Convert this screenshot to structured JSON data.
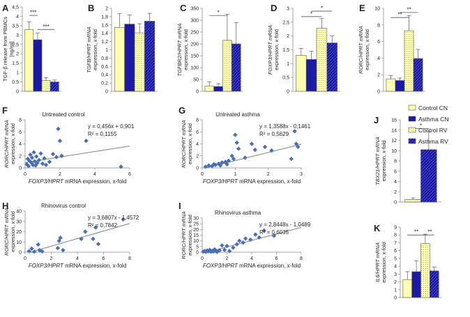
{
  "figure": {
    "colors": {
      "control_cn": "#ffffb0",
      "asthma_cn": "#1a1aa6",
      "control_rv": "#ffffb0",
      "asthma_rv": "#1a1aa6",
      "scatter_point": "#4a6fb5",
      "trend_line": "#808080",
      "axis": "#8a8a8a"
    },
    "legend": [
      {
        "label": "Control CN",
        "pattern": "solid-yellow"
      },
      {
        "label": "Asthma CN",
        "pattern": "solid-blue"
      },
      {
        "label": "Control RV",
        "pattern": "dotted-yellow"
      },
      {
        "label": "Asthma RV",
        "pattern": "hatched-blue"
      }
    ]
  },
  "chart_data": [
    {
      "panel": "A",
      "type": "bar",
      "ylabel_lines": [
        "TGF-β release from PBMCs",
        "[ng/ml]"
      ],
      "ylim": [
        0,
        4.5
      ],
      "yticks": [
        0,
        0.5,
        1,
        1.5,
        2,
        2.5,
        3,
        3.5,
        4,
        4.5
      ],
      "tick_labels": [
        "0",
        "0,5",
        "1",
        "1,5",
        "2",
        "2,5",
        "3",
        "3,5",
        "4",
        "4,5"
      ],
      "categories": [
        "Control CN",
        "Asthma CN",
        "Control RV",
        "Asthma RV"
      ],
      "values": [
        3.3,
        2.75,
        0.58,
        0.5
      ],
      "errors": [
        0.4,
        0.35,
        0.15,
        0.1
      ],
      "significance": [
        {
          "from": 0,
          "to": 1,
          "label": "***",
          "y": 4.05
        },
        {
          "from": 1,
          "to": 3,
          "label": "***",
          "y": 3.3
        }
      ]
    },
    {
      "panel": "B",
      "type": "bar",
      "ylabel_lines": [
        "TGFB/HPRT mRNA",
        "expression, x-fold"
      ],
      "ylim": [
        0,
        2
      ],
      "yticks": [
        0,
        0.2,
        0.4,
        0.6,
        0.8,
        1,
        1.2,
        1.4,
        1.6,
        1.8,
        2
      ],
      "tick_labels": [
        "0",
        "0,2",
        "0,4",
        "0,6",
        "0,8",
        "1",
        "1,2",
        "1,4",
        "1,6",
        "1,8",
        "2"
      ],
      "categories": [
        "Control CN",
        "Asthma CN",
        "Control RV",
        "Asthma RV"
      ],
      "values": [
        1.54,
        1.62,
        1.41,
        1.69
      ],
      "errors": [
        0.33,
        0.22,
        0.22,
        0.19
      ],
      "significance": []
    },
    {
      "panel": "C",
      "type": "bar",
      "ylabel_lines": [
        "TGFBR2/HPRT mRNA",
        "expression, x-fold"
      ],
      "ylim": [
        0,
        350
      ],
      "yticks": [
        0,
        50,
        100,
        150,
        200,
        250,
        300,
        350
      ],
      "tick_labels": [
        "0",
        "50",
        "100",
        "150",
        "200",
        "250",
        "300",
        "350"
      ],
      "categories": [
        "Control CN",
        "Asthma CN",
        "Control RV",
        "Asthma RV"
      ],
      "values": [
        22,
        20,
        215,
        200
      ],
      "errors": [
        18,
        12,
        110,
        90
      ],
      "significance": [
        {
          "from": 0,
          "to": 2,
          "label": "*",
          "y": 320
        }
      ]
    },
    {
      "panel": "D",
      "type": "bar",
      "ylabel_lines": [
        "FOXP3/HPRT mRNA",
        "expression, x-fold"
      ],
      "ylim": [
        0,
        3
      ],
      "yticks": [
        0,
        0.5,
        1,
        1.5,
        2,
        2.5,
        3
      ],
      "tick_labels": [
        "0",
        "0,5",
        "1",
        "1,5",
        "2",
        "2,5",
        "3"
      ],
      "categories": [
        "Control CN",
        "Asthma CN",
        "Control RV",
        "Asthma RV"
      ],
      "values": [
        1.3,
        1.15,
        2.28,
        1.75
      ],
      "errors": [
        0.25,
        0.3,
        0.35,
        0.25
      ],
      "significance": [
        {
          "from": 0,
          "to": 2,
          "label": "*",
          "y": 2.7
        },
        {
          "from": 1,
          "to": 3,
          "label": "*",
          "y": 2.9
        }
      ]
    },
    {
      "panel": "E",
      "type": "bar",
      "ylabel_lines": [
        "RORC/HPRT mRNA",
        "expression, x-fold"
      ],
      "ylim": [
        0,
        10
      ],
      "yticks": [
        0,
        2,
        4,
        6,
        8,
        10
      ],
      "tick_labels": [
        "0",
        "2",
        "4",
        "6",
        "8",
        "10"
      ],
      "categories": [
        "Control CN",
        "Asthma CN",
        "Control RV",
        "Asthma RV"
      ],
      "values": [
        1.5,
        1.3,
        7.3,
        3.95
      ],
      "errors": [
        0.4,
        0.3,
        1.8,
        1.1
      ],
      "significance": [
        {
          "from": 0,
          "to": 2,
          "label": "**",
          "y": 8.9
        },
        {
          "from": 1,
          "to": 3,
          "label": "**",
          "y": 9.5
        }
      ]
    },
    {
      "panel": "F",
      "type": "scatter",
      "title": "Untreated control",
      "ylabel_lines": [
        "RORC/HPRT mRNA",
        "expression, x-fold"
      ],
      "xlabel": "FOXP3/HPRT mRNA expression, x-fold",
      "xlim": [
        0,
        6
      ],
      "xticks": [
        0,
        2,
        4,
        6
      ],
      "ylim": [
        0,
        8
      ],
      "yticks": [
        0,
        2,
        4,
        6,
        8
      ],
      "equation": "y = 0,456x + 0,901",
      "r2": "R² = 0,1155",
      "slope": 0.456,
      "intercept": 0.901,
      "points": [
        [
          0.1,
          0.6
        ],
        [
          0.15,
          1.5
        ],
        [
          0.2,
          0.3
        ],
        [
          0.25,
          1.2
        ],
        [
          0.3,
          2.2
        ],
        [
          0.35,
          0.9
        ],
        [
          0.4,
          1.7
        ],
        [
          0.45,
          0.5
        ],
        [
          0.5,
          2.6
        ],
        [
          0.55,
          1.1
        ],
        [
          0.6,
          0.4
        ],
        [
          0.65,
          1.9
        ],
        [
          0.7,
          0.8
        ],
        [
          0.8,
          1.3
        ],
        [
          0.9,
          2.4
        ],
        [
          1.0,
          0.7
        ],
        [
          1.1,
          1.6
        ],
        [
          1.2,
          0.5
        ],
        [
          1.4,
          1.0
        ],
        [
          1.6,
          2.3
        ],
        [
          1.8,
          1.8
        ],
        [
          1.9,
          6.5
        ],
        [
          2.0,
          4.5
        ],
        [
          2.1,
          2.0
        ],
        [
          3.5,
          4.5
        ],
        [
          5.5,
          0.2
        ]
      ]
    },
    {
      "panel": "G",
      "type": "scatter",
      "title": "Untreated asthma",
      "ylabel_lines": [
        "RORC/HPRT mRNA",
        "expression, x-fold"
      ],
      "xlabel": "FOXP3/HPRT mRNA expression, x-fold",
      "xlim": [
        0,
        3
      ],
      "xticks": [
        0,
        1,
        2,
        3
      ],
      "ylim": [
        0,
        8
      ],
      "yticks": [
        0,
        2,
        4,
        6,
        8
      ],
      "equation": "y = 1,3588x - 0,1461",
      "r2": "R² = 0,5629",
      "slope": 1.3588,
      "intercept": -0.1461,
      "points": [
        [
          0.1,
          0.2
        ],
        [
          0.2,
          0.4
        ],
        [
          0.3,
          0.3
        ],
        [
          0.35,
          0.6
        ],
        [
          0.4,
          0.5
        ],
        [
          0.5,
          0.7
        ],
        [
          0.55,
          0.4
        ],
        [
          0.6,
          0.9
        ],
        [
          0.7,
          1.0
        ],
        [
          0.75,
          0.6
        ],
        [
          0.8,
          1.2
        ],
        [
          0.9,
          2.0
        ],
        [
          0.95,
          1.5
        ],
        [
          1.0,
          5.5
        ],
        [
          1.05,
          4.2
        ],
        [
          1.1,
          3.2
        ],
        [
          1.3,
          1.7
        ],
        [
          1.5,
          4.0
        ],
        [
          1.6,
          3.0
        ],
        [
          1.9,
          3.5
        ],
        [
          2.1,
          2.9
        ],
        [
          2.7,
          1.5
        ],
        [
          2.8,
          6.1
        ],
        [
          2.85,
          4.0
        ],
        [
          2.9,
          3.5
        ]
      ]
    },
    {
      "panel": "H",
      "type": "scatter",
      "title": "Rhinovirus control",
      "ylabel_lines": [
        "RORC/HPRT mRNA",
        "expression, x-fold"
      ],
      "xlabel": "FOXP3/HPRT mRNA expression, x-fold",
      "xlim": [
        0,
        8
      ],
      "xticks": [
        0,
        2,
        4,
        6,
        8
      ],
      "ylim": [
        0,
        40
      ],
      "yticks": [
        0,
        10,
        20,
        30,
        40
      ],
      "equation": "y = 3,6807x - 1,4572",
      "r2": "R² = 0,7842",
      "slope": 3.6807,
      "intercept": -1.4572,
      "points": [
        [
          0.3,
          1.0
        ],
        [
          0.5,
          3.5
        ],
        [
          0.7,
          0.5
        ],
        [
          1.0,
          7.5
        ],
        [
          1.1,
          2.0
        ],
        [
          1.3,
          0.8
        ],
        [
          2.5,
          4.0
        ],
        [
          2.6,
          11.0
        ],
        [
          2.7,
          14.0
        ],
        [
          2.9,
          2.0
        ],
        [
          4.3,
          13.0
        ],
        [
          4.6,
          20.0
        ],
        [
          5.2,
          13.0
        ],
        [
          5.4,
          24.0
        ],
        [
          5.6,
          8.0
        ],
        [
          7.5,
          32.0
        ]
      ]
    },
    {
      "panel": "I",
      "type": "scatter",
      "title": "Rhinovirus asthma",
      "ylabel_lines": [
        "RORC/HPRT mRNA",
        "expression, x-fold"
      ],
      "xlabel": "FOXP3/HPRT mRNA expression, x-fold",
      "xlim": [
        0,
        8
      ],
      "xticks": [
        0,
        2,
        4,
        6,
        8
      ],
      "ylim": [
        0,
        30
      ],
      "yticks": [
        0,
        5,
        10,
        15,
        20,
        25,
        30
      ],
      "equation": "y = 2,8448x - 1,0489",
      "r2": "R² = 0,6035",
      "slope": 2.8448,
      "intercept": -1.0489,
      "points": [
        [
          0.1,
          0.5
        ],
        [
          0.2,
          1.0
        ],
        [
          0.3,
          0.3
        ],
        [
          0.4,
          1.5
        ],
        [
          0.5,
          0.8
        ],
        [
          0.6,
          2.0
        ],
        [
          0.7,
          0.4
        ],
        [
          0.8,
          1.2
        ],
        [
          0.9,
          0.6
        ],
        [
          1.0,
          2.5
        ],
        [
          1.1,
          1.0
        ],
        [
          1.2,
          0.3
        ],
        [
          1.4,
          1.6
        ],
        [
          1.6,
          6.0
        ],
        [
          1.8,
          2.0
        ],
        [
          2.0,
          5.5
        ],
        [
          2.2,
          1.0
        ],
        [
          2.5,
          4.0
        ],
        [
          2.8,
          7.0
        ],
        [
          3.0,
          10.0
        ],
        [
          3.3,
          8.5
        ],
        [
          3.5,
          12.0
        ],
        [
          3.9,
          11.0
        ],
        [
          4.3,
          15.5
        ],
        [
          4.6,
          13.0
        ],
        [
          5.0,
          19.0
        ],
        [
          5.8,
          14.5
        ]
      ]
    },
    {
      "panel": "J",
      "type": "bar",
      "ylabel_lines": [
        "TBX21/HPRT mRNA",
        "expression, x-fold"
      ],
      "ylim": [
        0,
        16
      ],
      "yticks": [
        0,
        2,
        4,
        6,
        8,
        10,
        12,
        14,
        16
      ],
      "tick_labels": [
        "0",
        "2",
        "4",
        "6",
        "8",
        "10",
        "12",
        "14",
        "16"
      ],
      "categories": [
        "Control RV",
        "Asthma RV"
      ],
      "values": [
        0.5,
        10.2
      ],
      "errors": [
        0.3,
        3.5
      ],
      "significance": [
        {
          "from": 0,
          "to": 1,
          "label": "*",
          "y": 14.3
        }
      ]
    },
    {
      "panel": "K",
      "type": "bar",
      "ylabel_lines": [
        "IL6/HPRT mRNA",
        "expression, x-fold"
      ],
      "ylim": [
        0,
        9
      ],
      "yticks": [
        0,
        1,
        2,
        3,
        4,
        5,
        6,
        7,
        8,
        9
      ],
      "tick_labels": [
        "0",
        "1",
        "2",
        "3",
        "4",
        "5",
        "6",
        "7",
        "8",
        "9"
      ],
      "categories": [
        "Control CN",
        "Asthma CN",
        "Control RV",
        "Asthma RV"
      ],
      "values": [
        2.3,
        3.3,
        6.9,
        3.4
      ],
      "errors": [
        1.0,
        1.4,
        1.2,
        0.5
      ],
      "significance": [
        {
          "from": 0,
          "to": 2,
          "label": "**",
          "y": 8.0
        },
        {
          "from": 2,
          "to": 3,
          "label": "**",
          "y": 8.0
        }
      ]
    }
  ]
}
